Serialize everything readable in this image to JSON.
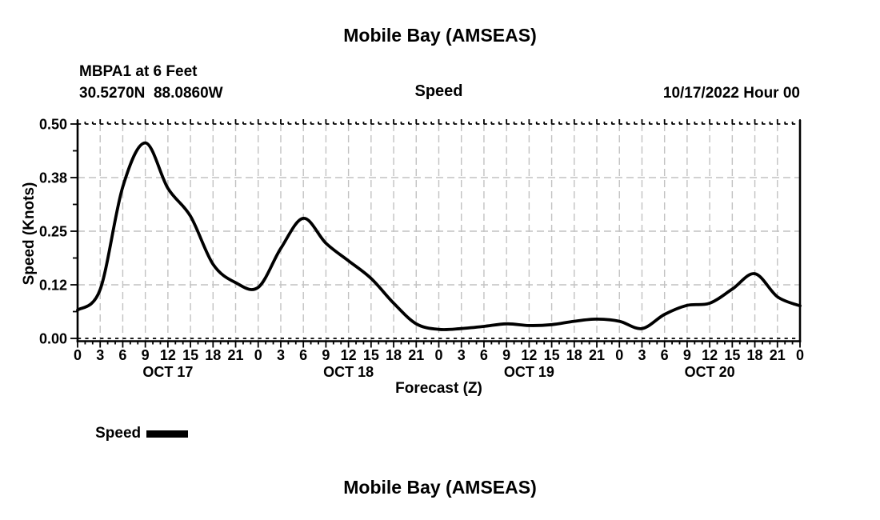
{
  "page": {
    "title_top": "Mobile Bay (AMSEAS)",
    "title_bottom": "Mobile Bay (AMSEAS)"
  },
  "header": {
    "station": "MBPA1 at 6 Feet",
    "coords": "30.5270N  88.0860W",
    "plot_title": "Speed",
    "run_time": "10/17/2022 Hour 00"
  },
  "chart_data": {
    "type": "line",
    "title": "Speed",
    "xlabel": "Forecast (Z)",
    "ylabel": "Speed (Knots)",
    "ylim": [
      0,
      0.5
    ],
    "grid": true,
    "legend_position": "bottom-left",
    "legend_label": "Speed",
    "line_color": "#000000",
    "grid_color": "#c2c2c2",
    "yticks": {
      "values": [
        0,
        0.125,
        0.25,
        0.375,
        0.5
      ],
      "labels": [
        "0.00",
        "0.12",
        "0.25",
        "0.38",
        "0.50"
      ]
    },
    "xtick_step_hours": 3,
    "x_hours_range": [
      0,
      96
    ],
    "xtick_labels": [
      "0",
      "3",
      "6",
      "9",
      "12",
      "15",
      "18",
      "21",
      "0",
      "3",
      "6",
      "9",
      "12",
      "15",
      "18",
      "21",
      "0",
      "3",
      "6",
      "9",
      "12",
      "15",
      "18",
      "21",
      "0",
      "3",
      "6",
      "9",
      "12",
      "15",
      "18",
      "21",
      "0"
    ],
    "day_labels": [
      "OCT 17",
      "OCT 18",
      "OCT 19",
      "OCT 20"
    ],
    "series": [
      {
        "name": "Speed",
        "x_hours": [
          0,
          3,
          6,
          9,
          12,
          15,
          18,
          21,
          24,
          27,
          30,
          33,
          36,
          39,
          42,
          45,
          48,
          51,
          54,
          57,
          60,
          63,
          66,
          69,
          72,
          75,
          78,
          81,
          84,
          87,
          90,
          93,
          96
        ],
        "values": [
          0.066,
          0.114,
          0.353,
          0.456,
          0.35,
          0.285,
          0.173,
          0.13,
          0.119,
          0.21,
          0.28,
          0.222,
          0.181,
          0.14,
          0.082,
          0.034,
          0.021,
          0.023,
          0.028,
          0.034,
          0.03,
          0.032,
          0.04,
          0.045,
          0.04,
          0.023,
          0.056,
          0.077,
          0.082,
          0.115,
          0.151,
          0.097,
          0.076
        ]
      }
    ]
  }
}
